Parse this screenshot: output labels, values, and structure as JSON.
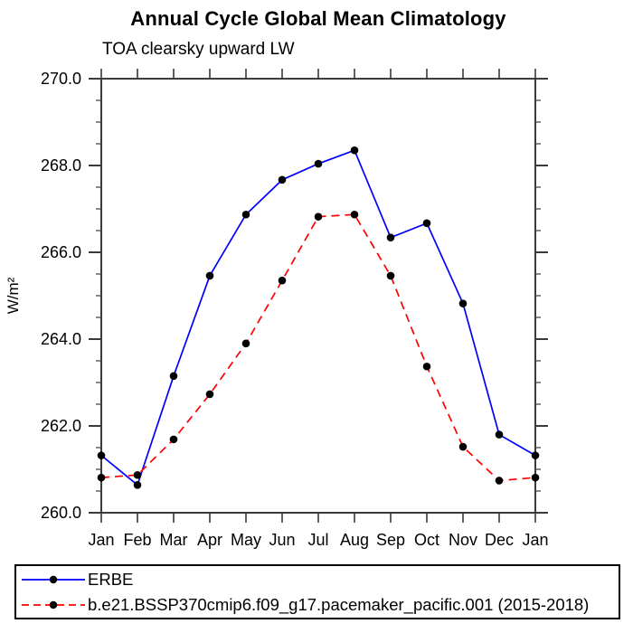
{
  "page": {
    "background": "#ffffff"
  },
  "chart_data": {
    "type": "line",
    "title": "Annual Cycle Global Mean Climatology",
    "subtitle": "TOA clearsky upward LW",
    "ylabel": "W/m²",
    "xlabel": "",
    "categories": [
      "Jan",
      "Feb",
      "Mar",
      "Apr",
      "May",
      "Jun",
      "Jul",
      "Aug",
      "Sep",
      "Oct",
      "Nov",
      "Dec",
      "Jan"
    ],
    "ylim": [
      260.0,
      270.0
    ],
    "ytick_major_interval": 2.0,
    "ytick_minor_interval": 0.5,
    "ytick_labels": [
      "260.0",
      "262.0",
      "264.0",
      "266.0",
      "268.0",
      "270.0"
    ],
    "grid": false,
    "legend_position": "bottom",
    "axis_color": "#3a3a3a",
    "marker_color": "#000000",
    "series": [
      {
        "name": "ERBE",
        "color": "#0000ff",
        "style": "solid",
        "marker": "circle",
        "values": [
          261.32,
          260.64,
          263.15,
          265.46,
          266.87,
          267.67,
          268.04,
          268.35,
          266.34,
          266.67,
          264.82,
          261.8,
          261.32
        ]
      },
      {
        "name": "b.e21.BSSP370cmip6.f09_g17.pacemaker_pacific.001 (2015-2018)",
        "color": "#ff0000",
        "style": "dashed",
        "marker": "circle",
        "values": [
          260.81,
          260.87,
          261.69,
          262.73,
          263.9,
          265.35,
          266.82,
          266.87,
          265.46,
          263.37,
          261.52,
          260.74,
          260.81
        ]
      }
    ]
  }
}
